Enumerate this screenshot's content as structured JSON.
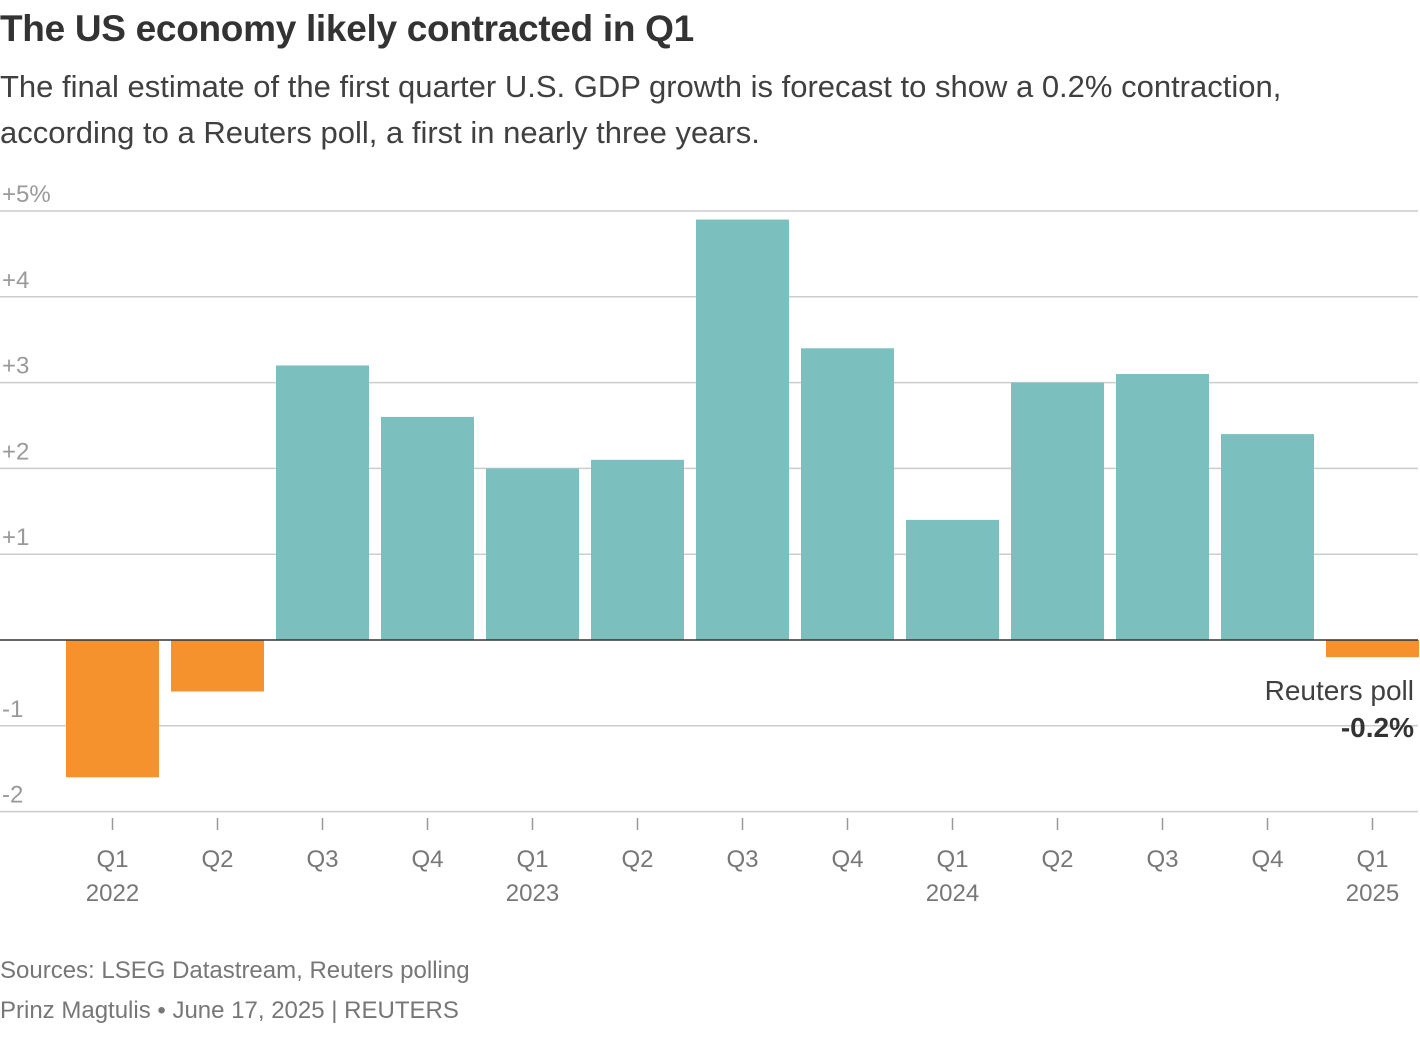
{
  "header": {
    "title": "The US economy likely contracted in Q1",
    "subtitle": "The final estimate of the first quarter U.S. GDP growth is forecast to show a 0.2% contraction, according to a Reuters poll, a first in nearly three years."
  },
  "footer": {
    "source": "Sources: LSEG Datastream, Reuters polling",
    "credit": "Prinz Magtulis • June 17, 2025 | REUTERS"
  },
  "chart_data": {
    "type": "bar",
    "title": "The US economy likely contracted in Q1",
    "ylabel": "",
    "xlabel": "",
    "unit": "%",
    "ylim": [
      -2,
      5
    ],
    "yticks": [
      {
        "value": 5,
        "label": "+5%"
      },
      {
        "value": 4,
        "label": "+4"
      },
      {
        "value": 3,
        "label": "+3"
      },
      {
        "value": 2,
        "label": "+2"
      },
      {
        "value": 1,
        "label": "+1"
      },
      {
        "value": -1,
        "label": "-1"
      },
      {
        "value": -2,
        "label": "-2"
      }
    ],
    "grid": true,
    "categories": [
      {
        "quarter": "Q1",
        "year": "2022"
      },
      {
        "quarter": "Q2",
        "year": ""
      },
      {
        "quarter": "Q3",
        "year": ""
      },
      {
        "quarter": "Q4",
        "year": ""
      },
      {
        "quarter": "Q1",
        "year": "2023"
      },
      {
        "quarter": "Q2",
        "year": ""
      },
      {
        "quarter": "Q3",
        "year": ""
      },
      {
        "quarter": "Q4",
        "year": ""
      },
      {
        "quarter": "Q1",
        "year": "2024"
      },
      {
        "quarter": "Q2",
        "year": ""
      },
      {
        "quarter": "Q3",
        "year": ""
      },
      {
        "quarter": "Q4",
        "year": ""
      },
      {
        "quarter": "Q1",
        "year": "2025"
      }
    ],
    "values": [
      -1.6,
      -0.6,
      3.2,
      2.6,
      2.0,
      2.1,
      4.9,
      3.4,
      1.4,
      3.0,
      3.1,
      2.4,
      -0.2
    ],
    "colors": {
      "positive": "#7bc0bf",
      "negative": "#f5922e",
      "grid": "#cccccc",
      "zero_line": "#333333"
    },
    "annotation": {
      "category_index": 12,
      "text": "Reuters poll",
      "value_label": "-0.2%"
    }
  }
}
